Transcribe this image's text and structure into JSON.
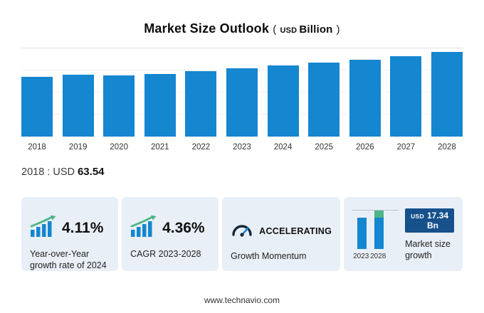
{
  "title": {
    "main": "Market Size Outlook",
    "paren_open": "(",
    "unit_small": "USD",
    "unit_large": "Billion",
    "paren_close": ")"
  },
  "chart_data": {
    "type": "bar",
    "title": "Market Size Outlook (USD Billion)",
    "categories": [
      "2018",
      "2019",
      "2020",
      "2021",
      "2022",
      "2023",
      "2024",
      "2025",
      "2026",
      "2027",
      "2028"
    ],
    "values": [
      63.54,
      66.1,
      65.3,
      67.2,
      69.8,
      72.9,
      75.9,
      78.9,
      82.1,
      85.9,
      90.2
    ],
    "unit": "USD Billion",
    "xlabel": "",
    "ylabel": "",
    "ylim": [
      0,
      95
    ],
    "bar_color": "#1586d0",
    "grid": "faint-horizontal",
    "legend": "none"
  },
  "annotation": {
    "label": "2018 : USD",
    "value": "63.54"
  },
  "cards": [
    {
      "icon": "bar-growth-arrow-icon",
      "value": "4.11%",
      "desc": "Year-over-Year growth rate of 2024"
    },
    {
      "icon": "bar-growth-arrow-icon",
      "value": "4.36%",
      "desc": "CAGR 2023-2028"
    },
    {
      "icon": "gauge-icon",
      "value": "ACCELERATING",
      "desc": "Growth Momentum"
    },
    {
      "icon": "mini-growth-chart",
      "badge_unit": "USD",
      "badge_value": "17.34 Bn",
      "desc": "Market size growth",
      "mini": {
        "years": [
          "2023",
          "2028"
        ],
        "base": 72.9,
        "total": 90.2,
        "base_color": "#1586d0",
        "growth_color": "#4bb588"
      }
    }
  ],
  "footer": {
    "url": "www.technavio.com"
  },
  "colors": {
    "bar_blue": "#1586d0",
    "accent_green": "#4bb588",
    "card_bg": "#e9eff6",
    "badge_bg": "#16518c"
  }
}
